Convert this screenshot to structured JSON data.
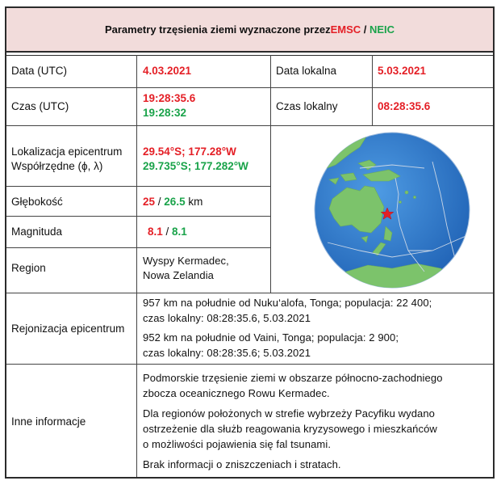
{
  "title": {
    "prefix": "Parametry  trzęsienia ziemi wyznaczone przez ",
    "emsc": "EMSC",
    "slash": " / ",
    "neic": "NEIC"
  },
  "rows": {
    "date_label": "Data (UTC)",
    "date_value": "4.03.2021",
    "local_date_label": "Data lokalna",
    "local_date_value": "5.03.2021",
    "time_label": "Czas (UTC)",
    "time_emsc": "19:28:35.6",
    "time_neic": "19:28:32",
    "local_time_label": "Czas lokalny",
    "local_time_value": "08:28:35.6",
    "location_label_1": "Lokalizacja epicentrum",
    "location_label_2": "Współrzędne (ϕ, λ)",
    "location_emsc": "29.54°S; 177.28°W",
    "location_neic": "29.735°S; 177.282°W",
    "depth_label": "Głębokość",
    "depth_emsc": "25",
    "depth_sep": " / ",
    "depth_neic": "26.5",
    "depth_unit": " km",
    "magnitude_label": "Magnituda",
    "magnitude_emsc": "8.1",
    "magnitude_sep": " / ",
    "magnitude_neic": "8.1",
    "region_label": "Region",
    "region_line_1": "Wyspy Kermadec,",
    "region_line_2": "Nowa Zelandia",
    "regionalization_label": "Rejonizacja epicentrum",
    "reg_1_line_1": "957 km na południe  od Nuku‘alofa, Tonga; populacja:  22 400;",
    "reg_1_line_2": "czas lokalny: 08:28:35.6, 5.03.2021",
    "reg_2_line_1": "952 km na południe  od Vaini, Tonga; populacja:  2 900;",
    "reg_2_line_2": "czas lokalny: 08:28:35.6; 5.03.2021",
    "other_label": "Inne informacje",
    "other_1_line_1": "Podmorskie  trzęsienie ziemi w obszarze północno-zachodniego",
    "other_1_line_2": "zbocza oceanicznego Rowu Kermadec.",
    "other_2_line_1": "Dla regionów  położonych  w strefie wybrzeży Pacyfiku  wydano",
    "other_2_line_2": "ostrzeżenie dla służb reagowania kryzysowego i mieszkańców",
    "other_2_line_3": "o możliwości pojawienia  się fal tsunami.",
    "other_3_line_1": "Brak informacji  o zniszczeniach i stratach."
  },
  "colors": {
    "emsc": "#e41f26",
    "neic": "#1aa34a",
    "title_bg": "#f2dcdb",
    "ocean": "#2f7fd0",
    "land": "#7cc36b"
  },
  "map": {
    "marker": "red star epicenter marker"
  }
}
